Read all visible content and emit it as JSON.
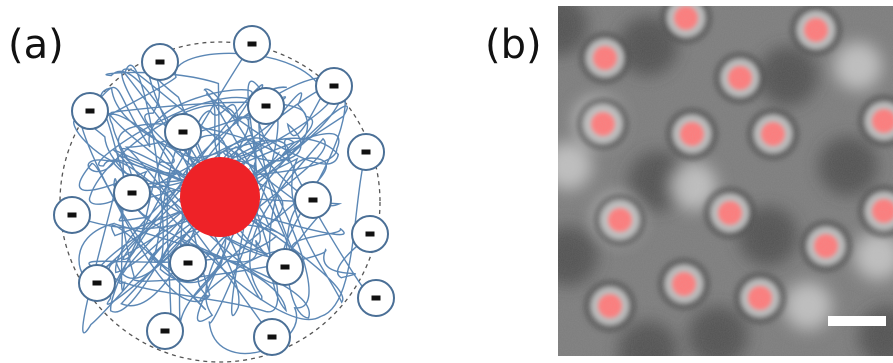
{
  "figure": {
    "panel_a": {
      "label": "(a)",
      "ion_symbol": "−",
      "core_color": "#ee2227",
      "chain_color": "#5b87b5",
      "ion_border_color": "#4a6f96"
    },
    "panel_b": {
      "label": "(b)",
      "particle_color": "#ff7a7a",
      "background_color": "#7d7d7d",
      "scale_bar_color": "#ffffff"
    }
  }
}
